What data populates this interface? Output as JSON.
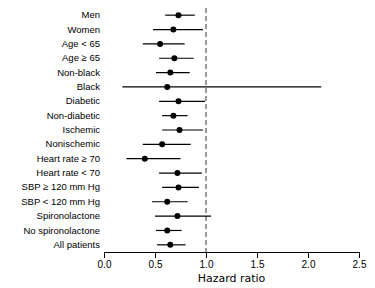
{
  "chart_data": {
    "type": "forest",
    "categories": [
      "Men",
      "Women",
      "Age < 65",
      "Age ≥ 65",
      "Non-black",
      "Black",
      "Diabetic",
      "Non-diabetic",
      "Ischemic",
      "Nonischemic",
      "Heart rate ≥ 70",
      "Heart rate < 70",
      "SBP ≥ 120 mm Hg",
      "SBP < 120 mm Hg",
      "Spironolactone",
      "No spironolactone",
      "All patients"
    ],
    "values": [
      0.73,
      0.68,
      0.55,
      0.69,
      0.65,
      0.62,
      0.73,
      0.68,
      0.74,
      0.57,
      0.4,
      0.72,
      0.73,
      0.62,
      0.72,
      0.62,
      0.65
    ],
    "lo": [
      0.6,
      0.48,
      0.38,
      0.54,
      0.51,
      0.18,
      0.54,
      0.57,
      0.57,
      0.38,
      0.22,
      0.54,
      0.57,
      0.47,
      0.5,
      0.51,
      0.52
    ],
    "hi": [
      0.89,
      0.97,
      0.79,
      0.88,
      0.84,
      2.13,
      0.99,
      0.82,
      0.97,
      0.85,
      0.75,
      0.96,
      0.93,
      0.82,
      1.05,
      0.76,
      0.8
    ],
    "reference_line": 1.0,
    "xlabel": "Hazard ratio",
    "xlim": [
      0.0,
      2.5
    ],
    "xticks": [
      {
        "value": 0.0,
        "label": "0.0"
      },
      0.5,
      {
        "value": 1.0,
        "label": "1.0"
      },
      1.5,
      {
        "value": 2.0,
        "label": "2.0"
      },
      2.5
    ],
    "color": "#000000",
    "grid": false
  }
}
